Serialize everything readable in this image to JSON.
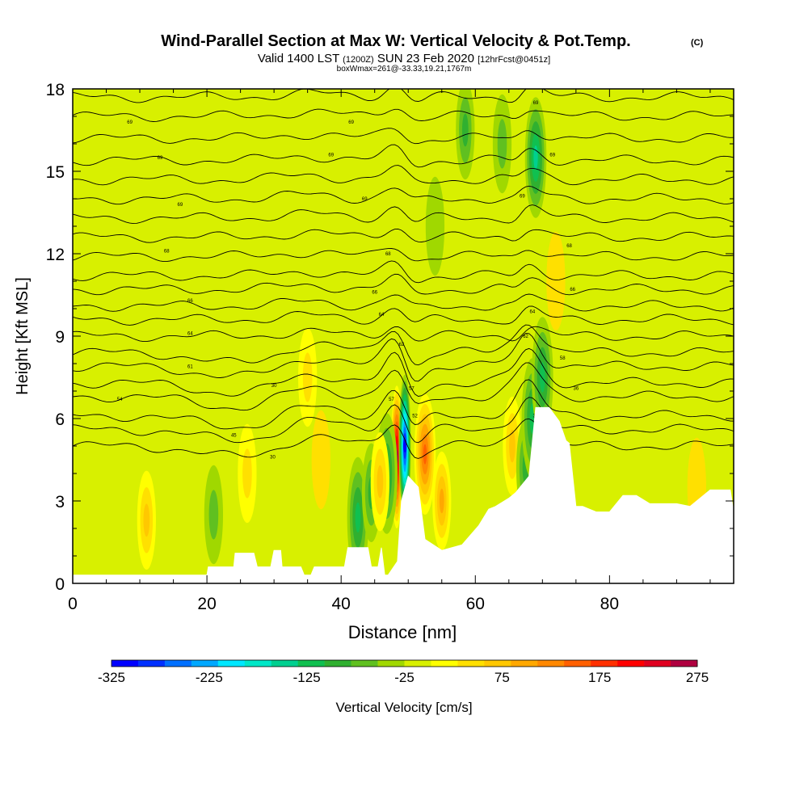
{
  "chart_data": {
    "type": "heatmap",
    "title": "Wind-Parallel Section at Max W: Vertical Velocity & Pot.Temp.",
    "title_mark": "(C)",
    "subtitle_main": "Valid 1400 LST",
    "subtitle_z": "(1200Z)",
    "subtitle_date": "SUN 23 Feb 2020",
    "subtitle_fcst": "[12hrFcst@0451z]",
    "subtitle2": "boxWmax=261@-33.33,19.21,1767m",
    "xlabel": "Distance [nm]",
    "ylabel": "Height [Kft MSL]",
    "xlim": [
      0,
      98.5
    ],
    "ylim": [
      0,
      18
    ],
    "x_ticks": [
      "0",
      "20",
      "40",
      "60",
      "80"
    ],
    "x_tick_values": [
      0,
      20,
      40,
      60,
      80
    ],
    "y_ticks": [
      "0",
      "3",
      "6",
      "9",
      "12",
      "15",
      "18"
    ],
    "y_tick_values": [
      0,
      3,
      6,
      9,
      12,
      15,
      18
    ],
    "colorbar": {
      "label": "Vertical Velocity [cm/s]",
      "tick_labels": [
        "-325",
        "-225",
        "-125",
        "-25",
        "75",
        "175",
        "275"
      ],
      "tick_values": [
        -325,
        -225,
        -125,
        -25,
        75,
        175,
        275
      ],
      "range": [
        -325,
        275
      ],
      "colors": [
        "#0000ff",
        "#0030ff",
        "#0070ff",
        "#00a8ff",
        "#00e8ff",
        "#00e8c8",
        "#00d090",
        "#10c050",
        "#30b030",
        "#60c020",
        "#a0d800",
        "#d8f000",
        "#ffff00",
        "#ffe000",
        "#ffc800",
        "#ffa800",
        "#ff8800",
        "#ff6000",
        "#ff3000",
        "#ff0000",
        "#e00020",
        "#b00040"
      ]
    },
    "background_value": -10,
    "velocity_features": [
      {
        "x": 48.3,
        "y": 4.6,
        "value": 260
      },
      {
        "x": 49.5,
        "y": 5.0,
        "value": -320
      },
      {
        "x": 46.8,
        "y": 4.0,
        "value": -130
      },
      {
        "x": 52.5,
        "y": 4.7,
        "value": 145
      },
      {
        "x": 55.0,
        "y": 3.0,
        "value": 90
      },
      {
        "x": 42.5,
        "y": 2.4,
        "value": -110
      },
      {
        "x": 44.5,
        "y": 3.3,
        "value": -90
      },
      {
        "x": 45.8,
        "y": 3.7,
        "value": 60
      },
      {
        "x": 65.5,
        "y": 5.0,
        "value": 60
      },
      {
        "x": 67.5,
        "y": 4.2,
        "value": -100
      },
      {
        "x": 68.5,
        "y": 6.0,
        "value": -130
      },
      {
        "x": 70.0,
        "y": 7.5,
        "value": -110
      },
      {
        "x": 69.0,
        "y": 15.5,
        "value": -140
      },
      {
        "x": 64.0,
        "y": 16.0,
        "value": -70
      },
      {
        "x": 11.0,
        "y": 2.3,
        "value": 70
      },
      {
        "x": 21.0,
        "y": 2.5,
        "value": -60
      },
      {
        "x": 26.0,
        "y": 4.0,
        "value": 40
      },
      {
        "x": 58.5,
        "y": 16.5,
        "value": -90
      },
      {
        "x": 54.0,
        "y": 13.0,
        "value": -40
      },
      {
        "x": 35.0,
        "y": 7.5,
        "value": 35
      },
      {
        "x": 37.0,
        "y": 4.5,
        "value": 30
      },
      {
        "x": 72.0,
        "y": 11.0,
        "value": 30
      },
      {
        "x": 93.0,
        "y": 3.5,
        "value": 30
      }
    ],
    "contour_base_heights": [
      5.0,
      5.6,
      6.1,
      6.8,
      7.3,
      7.9,
      8.4,
      9.0,
      9.6,
      10.1,
      10.7,
      11.2,
      11.9,
      12.6,
      13.3,
      14.0,
      14.7,
      15.4,
      16.2,
      17.0,
      17.7
    ],
    "contour_labels": [
      {
        "x": 24,
        "y": 5.4,
        "text": "45"
      },
      {
        "x": 29.8,
        "y": 4.6,
        "text": "30"
      },
      {
        "x": 30,
        "y": 7.2,
        "text": "30"
      },
      {
        "x": 7,
        "y": 6.7,
        "text": "54"
      },
      {
        "x": 17.5,
        "y": 7.9,
        "text": "61"
      },
      {
        "x": 17.5,
        "y": 9.1,
        "text": "64"
      },
      {
        "x": 17.5,
        "y": 10.3,
        "text": "66"
      },
      {
        "x": 14,
        "y": 12.1,
        "text": "68"
      },
      {
        "x": 16,
        "y": 13.8,
        "text": "69"
      },
      {
        "x": 13,
        "y": 15.5,
        "text": "69"
      },
      {
        "x": 8.5,
        "y": 16.8,
        "text": "69"
      },
      {
        "x": 38.5,
        "y": 15.6,
        "text": "69"
      },
      {
        "x": 41.5,
        "y": 16.8,
        "text": "69"
      },
      {
        "x": 43.5,
        "y": 14.0,
        "text": "69"
      },
      {
        "x": 47,
        "y": 12.0,
        "text": "68"
      },
      {
        "x": 45,
        "y": 10.6,
        "text": "66"
      },
      {
        "x": 46,
        "y": 9.8,
        "text": "64"
      },
      {
        "x": 49,
        "y": 8.7,
        "text": "62"
      },
      {
        "x": 47.5,
        "y": 6.7,
        "text": "57"
      },
      {
        "x": 50.5,
        "y": 7.1,
        "text": "57"
      },
      {
        "x": 51,
        "y": 6.1,
        "text": "52"
      },
      {
        "x": 69,
        "y": 17.5,
        "text": "69"
      },
      {
        "x": 71.5,
        "y": 15.6,
        "text": "69"
      },
      {
        "x": 67,
        "y": 14.1,
        "text": "69"
      },
      {
        "x": 74,
        "y": 12.3,
        "text": "68"
      },
      {
        "x": 74.5,
        "y": 10.7,
        "text": "66"
      },
      {
        "x": 68.5,
        "y": 9.9,
        "text": "64"
      },
      {
        "x": 67.5,
        "y": 9.0,
        "text": "62"
      },
      {
        "x": 73,
        "y": 8.2,
        "text": "58"
      },
      {
        "x": 75,
        "y": 7.1,
        "text": "36"
      },
      {
        "x": 69,
        "y": 6.1,
        "text": "38"
      }
    ],
    "terrain_nm": [
      0,
      20,
      20.2,
      24,
      24.2,
      27,
      27.5,
      29.5,
      30,
      31,
      31.2,
      34,
      34.5,
      35.5,
      36,
      40.5,
      41,
      44,
      44.5,
      45.5,
      46,
      46.5,
      47,
      48.4,
      49,
      50,
      51.5,
      52.5,
      55,
      58,
      60.5,
      62,
      63,
      65,
      66,
      68,
      69,
      71,
      72.5,
      73.5,
      74,
      75,
      76,
      78,
      80,
      82,
      84,
      86,
      88,
      90,
      92,
      95,
      98,
      98.5
    ],
    "terrain_kft": [
      0.3,
      0.3,
      0.6,
      0.6,
      1.1,
      1.1,
      0.6,
      0.6,
      1.2,
      1.2,
      0.6,
      0.6,
      0.3,
      0.3,
      0.6,
      0.6,
      1.3,
      1.3,
      0.6,
      0.6,
      1.3,
      0.3,
      0.3,
      0.8,
      3.0,
      3.9,
      3.5,
      1.6,
      1.2,
      1.4,
      2.1,
      2.7,
      2.8,
      3.1,
      3.3,
      3.9,
      6.4,
      6.4,
      5.9,
      5.2,
      5.1,
      2.8,
      2.8,
      2.6,
      2.6,
      3.2,
      3.2,
      2.9,
      2.9,
      2.9,
      2.8,
      3.4,
      3.4,
      2.6
    ]
  }
}
